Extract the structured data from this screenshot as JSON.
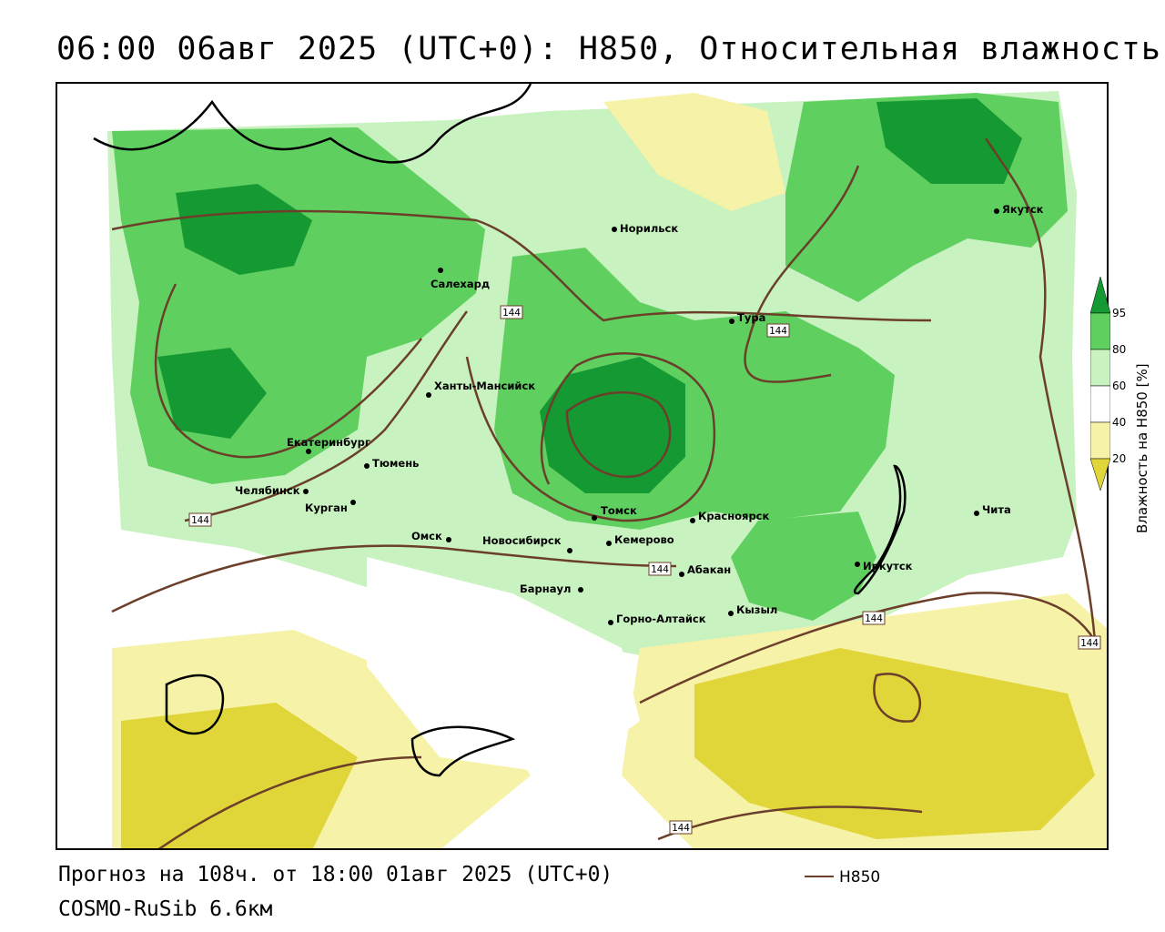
{
  "title": "06:00 06авг 2025 (UTC+0): H850, Относительная влажность",
  "forecast": "Прогноз на 108ч. от 18:00 01авг 2025 (UTC+0)",
  "model": "COSMO-RuSib 6.6км",
  "legend": {
    "line_label": "H850",
    "line_color": "#6b3f2a"
  },
  "colorbar": {
    "title": "Влажность на H850 [%]",
    "ticks": [
      "95",
      "80",
      "60",
      "40",
      "20"
    ],
    "colors": {
      "very_dry": "#e0d63a",
      "dry": "#f6f2a8",
      "neutral": "#ffffff",
      "moist": "#c8f2c0",
      "wet": "#5fcf5f",
      "very_wet": "#159a33"
    }
  },
  "contour_label": "144",
  "cities": [
    {
      "name": "Норильск"
    },
    {
      "name": "Якутск"
    },
    {
      "name": "Салехард"
    },
    {
      "name": "Тура"
    },
    {
      "name": "Ханты-Мансийск"
    },
    {
      "name": "Екатеринбург"
    },
    {
      "name": "Тюмень"
    },
    {
      "name": "Челябинск"
    },
    {
      "name": "Курган"
    },
    {
      "name": "Томск"
    },
    {
      "name": "Красноярск"
    },
    {
      "name": "Чита"
    },
    {
      "name": "Омск"
    },
    {
      "name": "Новосибирск"
    },
    {
      "name": "Кемерово"
    },
    {
      "name": "Абакан"
    },
    {
      "name": "Иркутск"
    },
    {
      "name": "Барнаул"
    },
    {
      "name": "Горно-Алтайск"
    },
    {
      "name": "Кызыл"
    }
  ]
}
